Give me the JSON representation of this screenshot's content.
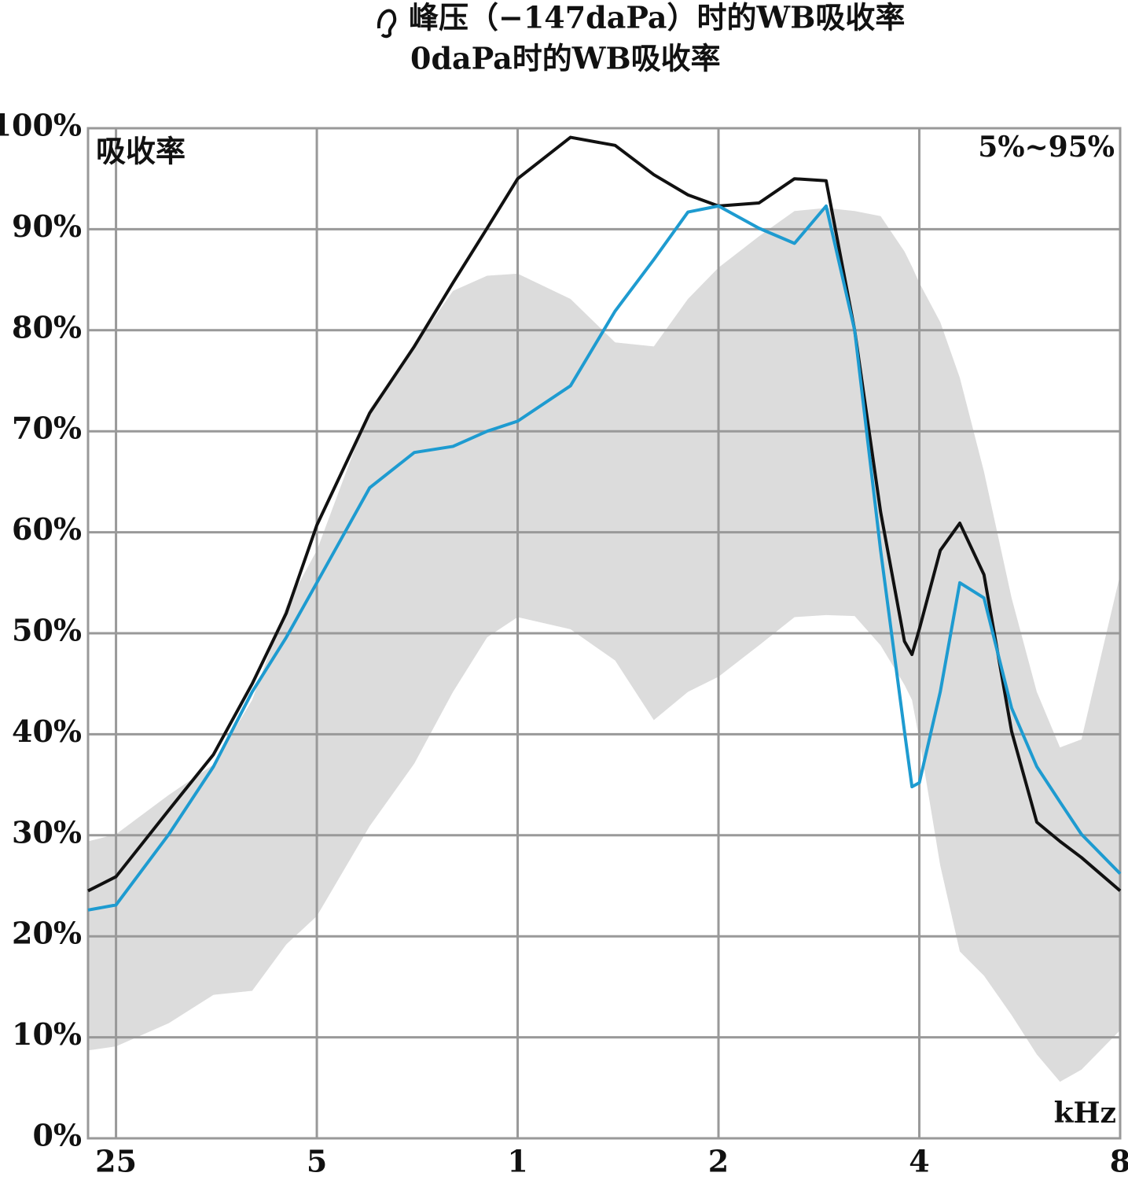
{
  "chart_data": {
    "type": "line",
    "title_lines": [
      "峰压（−147daPa）时的WB吸收率",
      "0daPa时的WB吸收率"
    ],
    "y_label": "吸收率",
    "x_label": "kHz",
    "log_x": true,
    "grid": true,
    "x": [
      0.227,
      0.25,
      0.3,
      0.35,
      0.4,
      0.45,
      0.5,
      0.6,
      0.7,
      0.8,
      0.9,
      1,
      1.2,
      1.4,
      1.6,
      1.8,
      2,
      2.3,
      2.6,
      2.9,
      3.2,
      3.5,
      3.8,
      3.9,
      4,
      4.3,
      4.6,
      5,
      5.5,
      6,
      6.5,
      7,
      8
    ],
    "series": [
      {
        "name": "峰压（−147daPa）时的WB吸收率",
        "color": "#111111",
        "values": [
          24.5,
          25.9,
          32.5,
          38,
          45,
          52,
          60.7,
          71.8,
          78.4,
          84.7,
          90.1,
          95,
          99.1,
          98.3,
          95.4,
          93.4,
          92.3,
          92.6,
          95,
          94.8,
          80,
          62,
          49.2,
          47.9,
          50.4,
          58.2,
          60.9,
          55.8,
          40.3,
          31.3,
          29.4,
          27.8,
          24.5
        ]
      },
      {
        "name": "0daPa时的WB吸收率",
        "color": "#1e9bd0",
        "values": [
          22.6,
          23.1,
          30.1,
          36.8,
          44.2,
          49.6,
          55,
          64.4,
          67.9,
          68.5,
          70,
          71,
          74.5,
          81.9,
          87,
          91.7,
          92.3,
          90.1,
          88.6,
          92.3,
          80,
          58.2,
          40.3,
          34.8,
          35.2,
          44.2,
          55,
          53.5,
          42.6,
          36.8,
          33.3,
          30.1,
          26.2
        ]
      }
    ],
    "band": {
      "label": "5%~95%",
      "color": "#dcdcdc",
      "upper": [
        29.4,
        30.1,
        34,
        37,
        43.4,
        52.7,
        58.2,
        72.2,
        78.4,
        83.9,
        85.4,
        85.6,
        83.1,
        78.8,
        78.4,
        83.1,
        86.2,
        89.3,
        91.8,
        92.1,
        91.8,
        91.3,
        87.8,
        86.3,
        84.7,
        80.8,
        75.3,
        66,
        53.5,
        44.2,
        38.7,
        39.5,
        55.8
      ],
      "lower": [
        8.7,
        9.1,
        11.4,
        14.2,
        14.6,
        19.2,
        22,
        30.9,
        37.1,
        44.2,
        49.6,
        51.6,
        50.4,
        47.3,
        41.4,
        44.2,
        45.7,
        48.8,
        51.6,
        51.8,
        51.7,
        48.8,
        44.9,
        43.4,
        39.5,
        27,
        18.5,
        16.1,
        12.2,
        8.3,
        5.6,
        6.8,
        10.7
      ]
    },
    "xlim": [
      0.227,
      8
    ],
    "xticks": [
      {
        "value": 0.25,
        "label": "25"
      },
      {
        "value": 0.5,
        "label": "5"
      },
      1,
      2,
      4,
      8
    ],
    "ylim": [
      0,
      100
    ],
    "yticks": [
      {
        "value": 0,
        "label": "0%"
      },
      {
        "value": 10,
        "label": "10%"
      },
      {
        "value": 20,
        "label": "20%"
      },
      {
        "value": 30,
        "label": "30%"
      },
      {
        "value": 40,
        "label": "40%"
      },
      {
        "value": 50,
        "label": "50%"
      },
      {
        "value": 60,
        "label": "60%"
      },
      {
        "value": 70,
        "label": "70%"
      },
      {
        "value": 80,
        "label": "80%"
      },
      {
        "value": 90,
        "label": "90%"
      },
      {
        "value": 100,
        "label": "100%"
      }
    ]
  }
}
